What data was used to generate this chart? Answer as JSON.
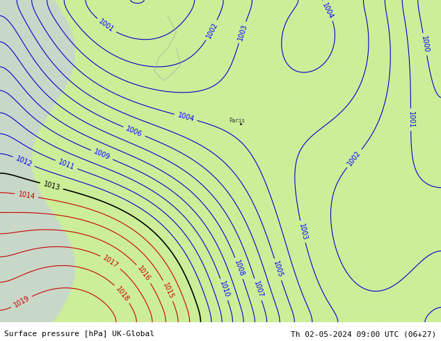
{
  "title_left": "Surface pressure [hPa] UK-Global",
  "title_right": "Th 02-05-2024 09:00 UTC (06+27)",
  "bg_color_land": "#ccee99",
  "bg_color_sea": "#e8e8e8",
  "bg_color_outside": "#c8d8c8",
  "isobar_color_blue": "#0000cc",
  "isobar_color_red": "#cc0000",
  "isobar_color_black": "#000000",
  "label_color_blue": "#0000ff",
  "label_color_red": "#cc0000",
  "label_color_black": "#000000",
  "footer_bg": "#ffffff",
  "text_color": "#000000",
  "font_size_labels": 7,
  "font_size_footer": 8
}
